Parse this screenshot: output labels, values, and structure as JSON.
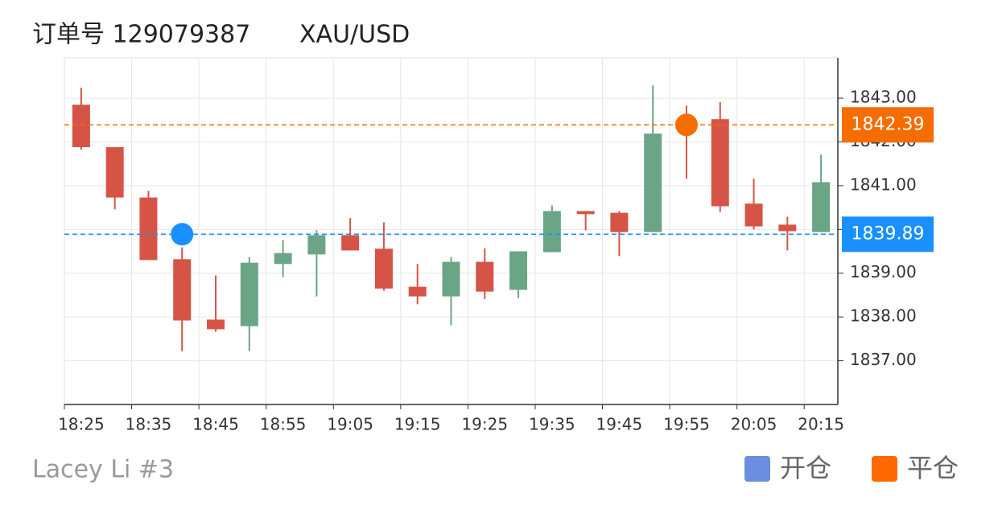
{
  "chart_data": {
    "type": "candlestick",
    "title": "订单号 129079387",
    "subtitle": "XAU/USD",
    "footer": "Lacey Li #3",
    "categories": [
      "18:25",
      null,
      "18:35",
      null,
      "18:45",
      null,
      "18:55",
      null,
      "19:05",
      null,
      "19:15",
      null,
      "19:25",
      null,
      "19:35",
      null,
      "19:45",
      null,
      "19:55",
      null,
      "20:05",
      null,
      "20:15"
    ],
    "open": [
      1842.85,
      1841.88,
      1840.73,
      1839.32,
      1837.94,
      1837.79,
      1839.21,
      1839.43,
      1839.87,
      1839.56,
      1838.69,
      1838.47,
      1839.26,
      1838.62,
      1839.48,
      1840.42,
      1840.38,
      1839.94,
      1842.45,
      1842.52,
      1840.59,
      1840.11,
      1839.94
    ],
    "high": [
      1843.24,
      1841.88,
      1840.88,
      1839.59,
      1838.95,
      1839.37,
      1839.76,
      1839.98,
      1840.26,
      1840.16,
      1839.21,
      1839.37,
      1839.57,
      1839.5,
      1840.55,
      1840.42,
      1840.42,
      1843.29,
      1842.83,
      1842.91,
      1841.16,
      1840.29,
      1841.71
    ],
    "low": [
      1841.82,
      1840.46,
      1839.3,
      1837.22,
      1837.66,
      1837.22,
      1838.91,
      1838.47,
      1839.52,
      1838.6,
      1838.29,
      1837.81,
      1838.41,
      1838.43,
      1839.48,
      1839.98,
      1839.39,
      1839.94,
      1841.16,
      1840.4,
      1840.0,
      1839.52,
      1839.94
    ],
    "close": [
      1841.88,
      1840.73,
      1839.3,
      1837.92,
      1837.72,
      1839.24,
      1839.46,
      1839.87,
      1839.52,
      1838.65,
      1838.47,
      1839.26,
      1838.58,
      1839.5,
      1840.42,
      1840.35,
      1839.94,
      1842.19,
      1842.4,
      1840.53,
      1840.07,
      1839.96,
      1841.08
    ],
    "up_color": "#6aa586",
    "down_color": "#d65446",
    "markers": [
      {
        "name": "开仓",
        "color": "#1a90ff",
        "legend_color": "#6c8de0",
        "values": [
          null,
          null,
          null,
          1839.89,
          null,
          null,
          null,
          null,
          null,
          null,
          null,
          null,
          null,
          null,
          null,
          null,
          null,
          null,
          null,
          null,
          null,
          null,
          null
        ]
      },
      {
        "name": "平仓",
        "color": "#f56c00",
        "legend_color": "#ff6a00",
        "values": [
          null,
          null,
          null,
          null,
          null,
          null,
          null,
          null,
          null,
          null,
          null,
          null,
          null,
          null,
          null,
          null,
          null,
          null,
          1842.39,
          null,
          null,
          null,
          null
        ]
      }
    ],
    "ylim": [
      1836.0,
      1843.92
    ],
    "yticks": [
      {
        "value": 1837,
        "label": "1837.00"
      },
      {
        "value": 1838,
        "label": "1838.00"
      },
      {
        "value": 1839,
        "label": "1839.00"
      },
      {
        "value": 1840,
        "label": "1840.00"
      },
      {
        "value": 1841,
        "label": "1841.00"
      },
      {
        "value": 1842,
        "label": "1842.00"
      },
      {
        "value": 1843,
        "label": "1843.00"
      }
    ],
    "grid": true
  }
}
